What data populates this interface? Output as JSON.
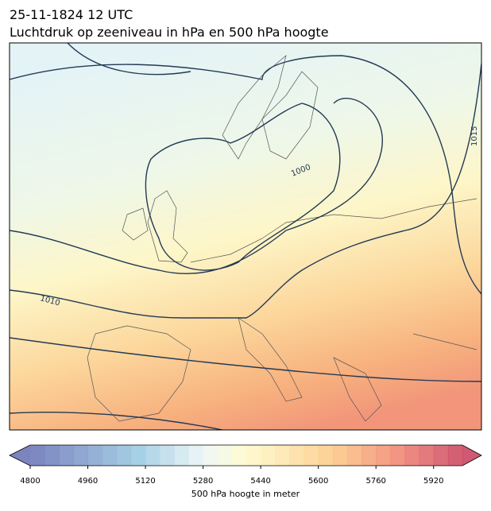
{
  "header": {
    "title": "25-11-1824 12 UTC",
    "subtitle": "Luchtdruk op zeeniveau in hPa en 500 hPa hoogte"
  },
  "map": {
    "contour_labels": [
      "1000",
      "1010",
      "1015"
    ]
  },
  "colorbar": {
    "lim": [
      4800,
      6000
    ],
    "step": 40,
    "ticks": [
      4800,
      4960,
      5120,
      5280,
      5440,
      5600,
      5760,
      5920
    ],
    "label": "500 hPa hoogte in meter"
  }
}
